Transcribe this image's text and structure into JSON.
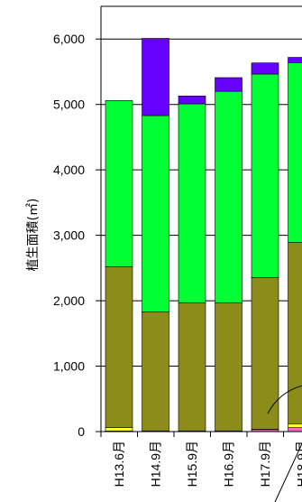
{
  "chart_data": {
    "type": "bar",
    "stacked": true,
    "ylabel": "植生面積(㎡)",
    "ylim": [
      0,
      6500
    ],
    "yticks": [
      0,
      1000,
      2000,
      3000,
      4000,
      5000,
      6000
    ],
    "ytick_labels": [
      "0",
      "1,000",
      "2,000",
      "3,000",
      "4,000",
      "5,000",
      "6,000"
    ],
    "grid": true,
    "categories": [
      "H13.6月",
      "H14.9月",
      "H15.9月",
      "H16.9月",
      "H17.9月",
      "H18.9月"
    ],
    "series": [
      {
        "color": "#ff66cc",
        "values": [
          10,
          5,
          5,
          5,
          30,
          60
        ]
      },
      {
        "color": "#ffff33",
        "values": [
          50,
          5,
          5,
          5,
          5,
          60
        ]
      },
      {
        "color": "#8c8c1a",
        "values": [
          2460,
          1820,
          1960,
          1960,
          2320,
          2770
        ]
      },
      {
        "color": "#00ff33",
        "values": [
          2540,
          3000,
          3040,
          3230,
          3110,
          2750
        ]
      },
      {
        "color": "#6600ff",
        "values": [
          0,
          1180,
          120,
          210,
          170,
          80
        ]
      }
    ]
  }
}
